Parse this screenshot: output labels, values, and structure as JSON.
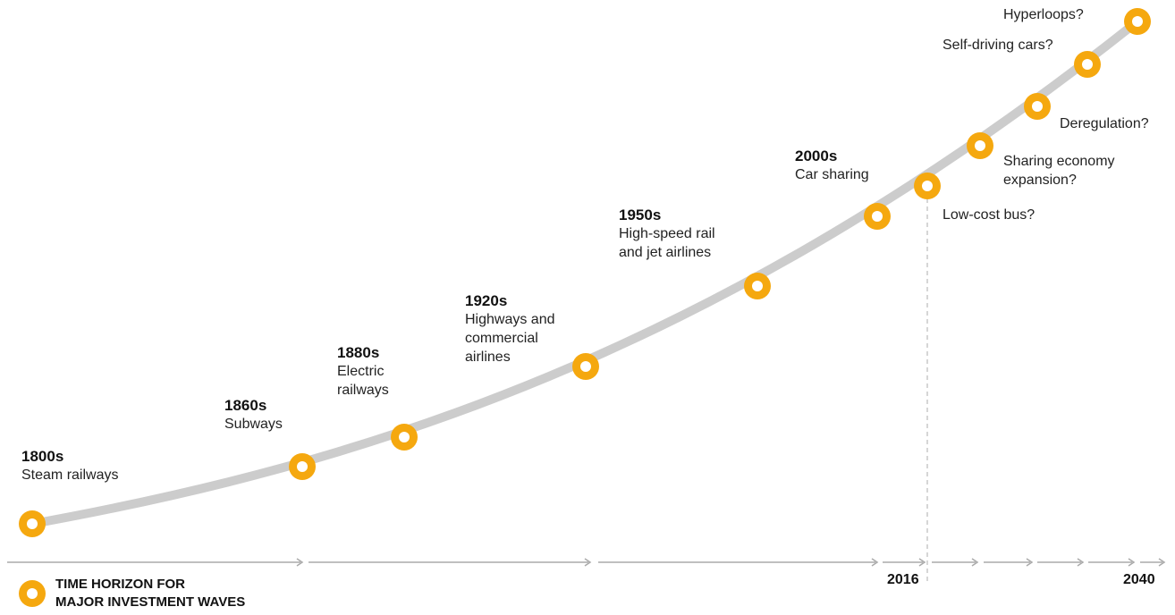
{
  "colors": {
    "curve": "#cccccc",
    "marker": "#f5a80f",
    "arrow": "#aaaaaa",
    "divider": "#c8c8c8"
  },
  "milestones": [
    {
      "era": "1800s",
      "desc": "Steam railways"
    },
    {
      "era": "1860s",
      "desc": "Subways"
    },
    {
      "era": "1880s",
      "desc": "Electric\nrailways"
    },
    {
      "era": "1920s",
      "desc": "Highways and\ncommercial\nairlines"
    },
    {
      "era": "1950s",
      "desc": "High-speed rail\nand jet airlines"
    },
    {
      "era": "2000s",
      "desc": "Car sharing"
    }
  ],
  "future": [
    {
      "text": "Low-cost bus?"
    },
    {
      "text": "Sharing economy\nexpansion?"
    },
    {
      "text": "Deregulation?"
    },
    {
      "text": "Self-driving cars?"
    },
    {
      "text": "Hyperloops?"
    }
  ],
  "axis": {
    "year_present": "2016",
    "year_end": "2040"
  },
  "legend": {
    "line1": "TIME HORIZON FOR",
    "line2": "MAJOR INVESTMENT WAVES",
    "icon": "marker-ring-icon"
  }
}
